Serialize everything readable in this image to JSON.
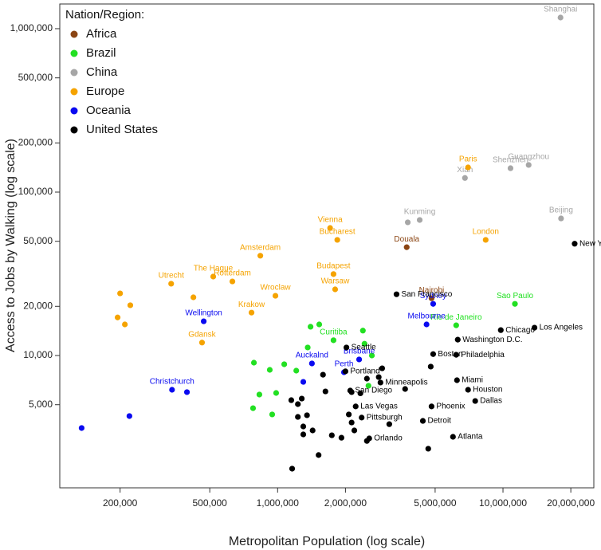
{
  "chart_data": {
    "type": "scatter",
    "x_label": "Metropolitan Population (log scale)",
    "y_label": "Access to Jobs by Walking (log scale)",
    "legend_title": "Nation/Region:",
    "legend_position": "top-left",
    "xlog": true,
    "ylog": true,
    "grid": false,
    "xlim": [
      108000,
      25300000
    ],
    "ylim": [
      1550,
      1416000
    ],
    "xticks": [
      {
        "value": 200000,
        "label": "200,000"
      },
      {
        "value": 500000,
        "label": "500,000"
      },
      {
        "value": 1000000,
        "label": "1,000,000"
      },
      {
        "value": 2000000,
        "label": "2,000,000"
      },
      {
        "value": 5000000,
        "label": "5,000,000"
      },
      {
        "value": 10000000,
        "label": "10,000,000"
      },
      {
        "value": 20000000,
        "label": "20,000,000"
      }
    ],
    "yticks": [
      {
        "value": 5000,
        "label": "5,000"
      },
      {
        "value": 10000,
        "label": "10,000"
      },
      {
        "value": 20000,
        "label": "20,000"
      },
      {
        "value": 50000,
        "label": "50,000"
      },
      {
        "value": 100000,
        "label": "100,000"
      },
      {
        "value": 200000,
        "label": "200,000"
      },
      {
        "value": 500000,
        "label": "500,000"
      },
      {
        "value": 1000000,
        "label": "1,000,000"
      }
    ],
    "series": [
      {
        "name": "Africa",
        "color": "#8b4513",
        "x": [
          3740000,
          4820000
        ],
        "values": [
          46000,
          22400
        ],
        "labels": [
          "Douala",
          "Nairobi"
        ]
      },
      {
        "name": "Brazil",
        "color": "#22e022",
        "x": [
          11300000,
          6200000,
          1770000,
          1400000,
          1530000,
          2390000,
          2430000,
          1360000,
          2620000,
          785000,
          1070000,
          923000,
          1210000,
          830000,
          985000,
          778000,
          946000,
          2530000
        ],
        "values": [
          20700,
          15300,
          12400,
          15000,
          15500,
          14200,
          11800,
          11200,
          10000,
          9040,
          8840,
          8170,
          8080,
          5770,
          5900,
          4760,
          4360,
          6530
        ],
        "labels": [
          "Sao Paulo",
          "Rio de Janeiro",
          "Curitiba",
          null,
          null,
          null,
          null,
          null,
          null,
          null,
          null,
          null,
          null,
          null,
          null,
          null,
          null,
          null
        ]
      },
      {
        "name": "China",
        "color": "#a6a6a6",
        "x": [
          18000000,
          13000000,
          10800000,
          6780000,
          3780000,
          4270000,
          18100000
        ],
        "values": [
          1170000,
          146600,
          140000,
          122000,
          65300,
          67500,
          69000
        ],
        "labels": [
          "Shanghai",
          "Guangzhou",
          "Shenzhen",
          "Xian",
          null,
          "Kunming",
          "Beijing"
        ]
      },
      {
        "name": "Europe",
        "color": "#f5a300",
        "x": [
          7000000,
          8380000,
          1710000,
          1840000,
          838000,
          1770000,
          1800000,
          518000,
          630000,
          337000,
          978000,
          766000,
          462000,
          200000,
          222000,
          423000,
          195000,
          210000
        ],
        "values": [
          141600,
          51000,
          60300,
          51000,
          40800,
          31500,
          25400,
          30400,
          28400,
          27500,
          23200,
          18300,
          12000,
          24000,
          20300,
          22700,
          17100,
          15500
        ],
        "labels": [
          "Paris",
          "London",
          "Vienna",
          "Bucharest",
          "Amsterdam",
          "Budapest",
          "Warsaw",
          "The Hague",
          "Rotterdam",
          "Utrecht",
          "Wroclaw",
          "Krakow",
          "Gdansk",
          null,
          null,
          null,
          null,
          null
        ]
      },
      {
        "name": "Oceania",
        "color": "#0a0af0",
        "x": [
          4900000,
          4580000,
          470000,
          2300000,
          1420000,
          1970000,
          340000,
          396000,
          1300000,
          220000,
          135000
        ],
        "values": [
          20700,
          15500,
          16200,
          9460,
          8940,
          7900,
          6170,
          5970,
          6900,
          4260,
          3600
        ],
        "labels": [
          "Sydney",
          "Melbourne",
          "Wellington",
          "Brisbane",
          "Auckalnd",
          "Perth",
          "Christchurch",
          null,
          null,
          null,
          null
        ]
      },
      {
        "name": "United States",
        "color": "#000000",
        "x": [
          20800000,
          3370000,
          9780000,
          13800000,
          6300000,
          4900000,
          6200000,
          2020000,
          2000000,
          2860000,
          2100000,
          6250000,
          7000000,
          7530000,
          4820000,
          2220000,
          2360000,
          4410000,
          6000000,
          2550000,
          2910000,
          2810000,
          2490000,
          1590000,
          1630000,
          2130000,
          2330000,
          3680000,
          4780000,
          1150000,
          1280000,
          1230000,
          1350000,
          1230000,
          1300000,
          1300000,
          1430000,
          1740000,
          1920000,
          2070000,
          2130000,
          2190000,
          3130000,
          1520000,
          1160000,
          4660000,
          2490000
        ],
        "values": [
          48300,
          23700,
          14300,
          14800,
          12500,
          10200,
          10100,
          11200,
          8000,
          6830,
          6100,
          7060,
          6170,
          5270,
          4880,
          4880,
          4170,
          3980,
          3180,
          3110,
          8350,
          7380,
          7220,
          7630,
          6030,
          5970,
          5870,
          6240,
          8550,
          5330,
          5450,
          5040,
          4310,
          4210,
          3680,
          3290,
          3480,
          3250,
          3140,
          4360,
          3890,
          3480,
          3800,
          2460,
          2030,
          2690,
          3000
        ],
        "labels": [
          "New York City",
          "San Francisco",
          "Chicago",
          "Los Angeles",
          "Washington D.C.",
          "Boston",
          "Philadelphia",
          "Seattle",
          "Portland",
          "Minneapolis",
          "San Diego",
          "Miami",
          "Houston",
          "Dallas",
          "Phoenix",
          "Las Vegas",
          "Pittsburgh",
          "Detroit",
          "Atlanta",
          "Orlando",
          null,
          null,
          null,
          null,
          null,
          null,
          null,
          null,
          null,
          null,
          null,
          null,
          null,
          null,
          null,
          null,
          null,
          null,
          null,
          null,
          null,
          null,
          null,
          null,
          null,
          null,
          null
        ]
      }
    ]
  }
}
